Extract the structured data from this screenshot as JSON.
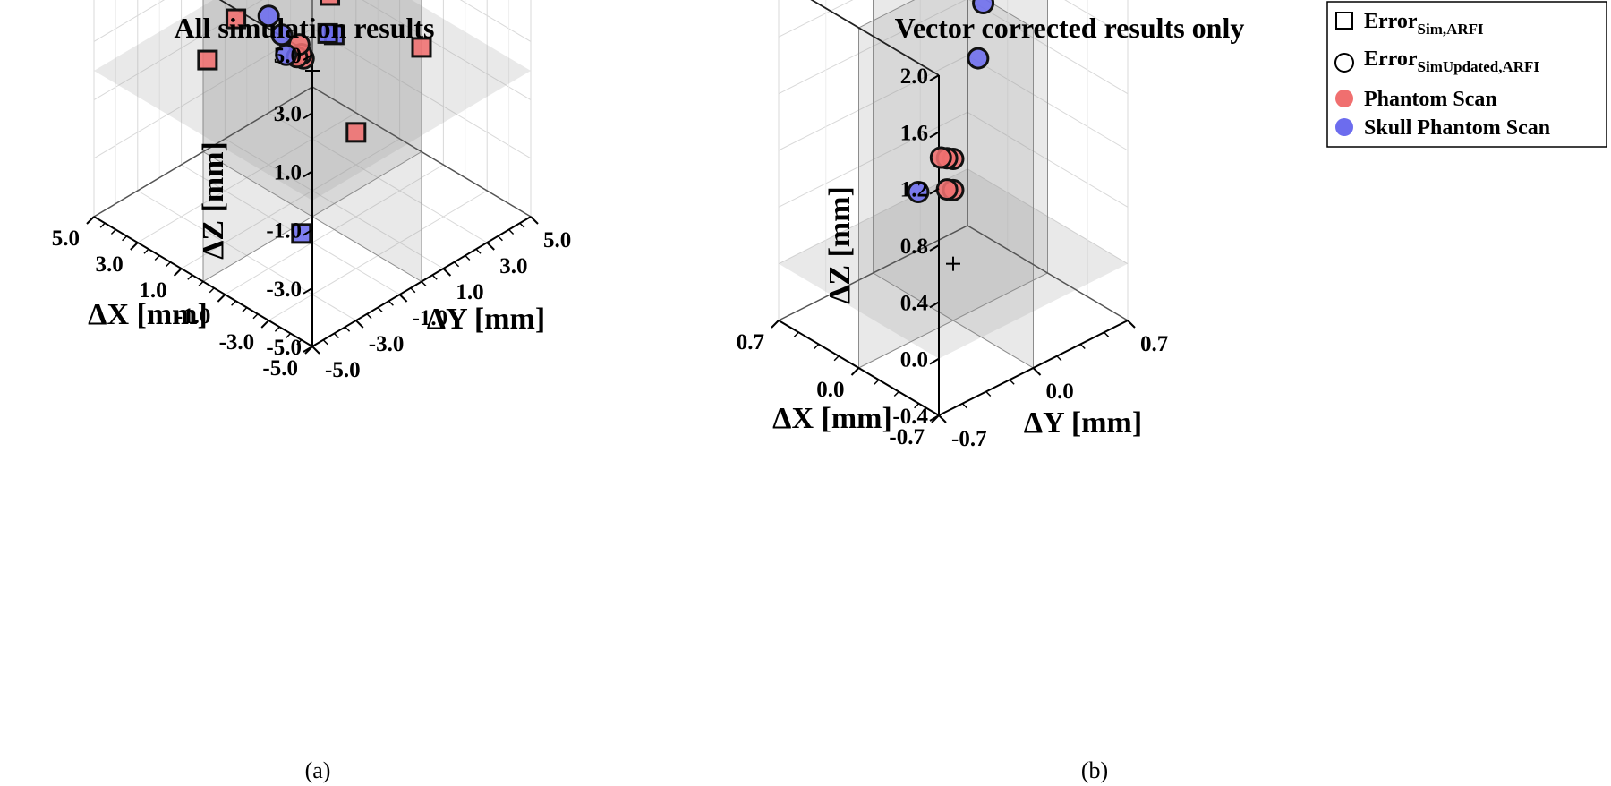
{
  "figure": {
    "label_a": "(a)",
    "label_b": "(b)"
  },
  "legend": {
    "items": [
      {
        "name": "Error",
        "sub": "Sim,ARFI",
        "marker": "square"
      },
      {
        "name": "Error",
        "sub": "SimUpdated,ARFI",
        "marker": "circle"
      },
      {
        "name": "Phantom Scan",
        "sub": "",
        "marker": "dot"
      },
      {
        "name": "Skull Phantom Scan",
        "sub": "",
        "marker": "dot"
      }
    ],
    "colors": {
      "phantom": "#f06f6f",
      "skull": "#6c6cee"
    }
  },
  "chart_data": [
    {
      "type": "scatter",
      "title": "All simulation results",
      "xlabel": "ΔX [mm]",
      "ylabel": "ΔY [mm]",
      "zlabel": "ΔZ [mm]",
      "xlim": [
        -5,
        5
      ],
      "ylim": [
        -5,
        5
      ],
      "zlim": [
        -5,
        5
      ],
      "xticks": [
        "-5.0",
        "-3.0",
        "-1.0",
        "1.0",
        "3.0",
        "5.0"
      ],
      "yticks": [
        "-5.0",
        "-3.0",
        "-1.0",
        "1.0",
        "3.0",
        "5.0"
      ],
      "zticks": [
        "-5.0",
        "-3.0",
        "-1.0",
        "1.0",
        "3.0",
        "5.0"
      ],
      "series": [
        {
          "name": "Error Sim,ARFI - Phantom Scan",
          "marker": "square",
          "color": "#f06f6f",
          "points": [
            [
              -3.2,
              3.7,
              4.7
            ],
            [
              1.8,
              -3.0,
              0.9
            ],
            [
              -1.0,
              1.5,
              4.6
            ],
            [
              3.6,
              -2.2,
              3.3
            ],
            [
              -0.2,
              0.6,
              2.4
            ],
            [
              1.5,
              -2.0,
              2.0
            ],
            [
              -1.8,
              0.2,
              -1.4
            ],
            [
              -2.5,
              2.5,
              0.8
            ]
          ]
        },
        {
          "name": "Error Sim,ARFI - Skull Phantom Scan",
          "marker": "square",
          "color": "#6c6cee",
          "points": [
            [
              -3.5,
              -2.5,
              3.9
            ],
            [
              -3.3,
              -2.6,
              3.9
            ],
            [
              -0.4,
              -0.9,
              -5.0
            ]
          ]
        },
        {
          "name": "Error SimUpdated,ARFI - Phantom Scan",
          "marker": "circle",
          "color": "#f06f6f",
          "points": [
            [
              0.0,
              -0.4,
              0.6
            ],
            [
              0.2,
              -0.5,
              0.6
            ],
            [
              0.1,
              -0.4,
              0.7
            ],
            [
              0.3,
              -0.3,
              0.9
            ]
          ]
        },
        {
          "name": "Error SimUpdated,ARFI - Skull Phantom Scan",
          "marker": "circle",
          "color": "#6c6cee",
          "points": [
            [
              0.4,
              -1.0,
              1.5
            ],
            [
              1.2,
              -0.8,
              1.7
            ],
            [
              1.1,
              -0.1,
              0.1
            ]
          ]
        }
      ],
      "origin_marker": [
        0,
        0,
        0
      ]
    },
    {
      "type": "scatter",
      "title": "Vector corrected results only",
      "xlabel": "ΔX [mm]",
      "ylabel": "ΔY [mm]",
      "zlabel": "ΔZ [mm]",
      "xlim": [
        -0.7,
        0.7
      ],
      "ylim": [
        -0.7,
        0.7
      ],
      "zlim": [
        -0.4,
        2.0
      ],
      "xticks": [
        "-0.7",
        "0.0",
        "0.7"
      ],
      "yticks": [
        "-0.7",
        "0.0",
        "0.7"
      ],
      "zticks": [
        "-0.4",
        "0.0",
        "0.4",
        "0.8",
        "1.2",
        "1.6",
        "2.0"
      ],
      "series": [
        {
          "name": "Error SimUpdated,ARFI - Phantom Scan",
          "marker": "circle",
          "color": "#f06f6f",
          "points": [
            [
              0.0,
              0.0,
              0.74
            ],
            [
              0.03,
              -0.02,
              0.74
            ],
            [
              0.06,
              -0.04,
              0.74
            ],
            [
              0.0,
              0.0,
              0.52
            ],
            [
              0.03,
              -0.02,
              0.52
            ]
          ]
        },
        {
          "name": "Error SimUpdated,ARFI - Skull Phantom Scan",
          "marker": "circle",
          "color": "#6c6cee",
          "points": [
            [
              -0.1,
              0.1,
              1.45
            ],
            [
              0.15,
              0.35,
              1.6
            ],
            [
              0.6,
              0.25,
              0.1
            ]
          ]
        }
      ],
      "origin_marker": [
        0,
        0,
        0
      ]
    }
  ]
}
